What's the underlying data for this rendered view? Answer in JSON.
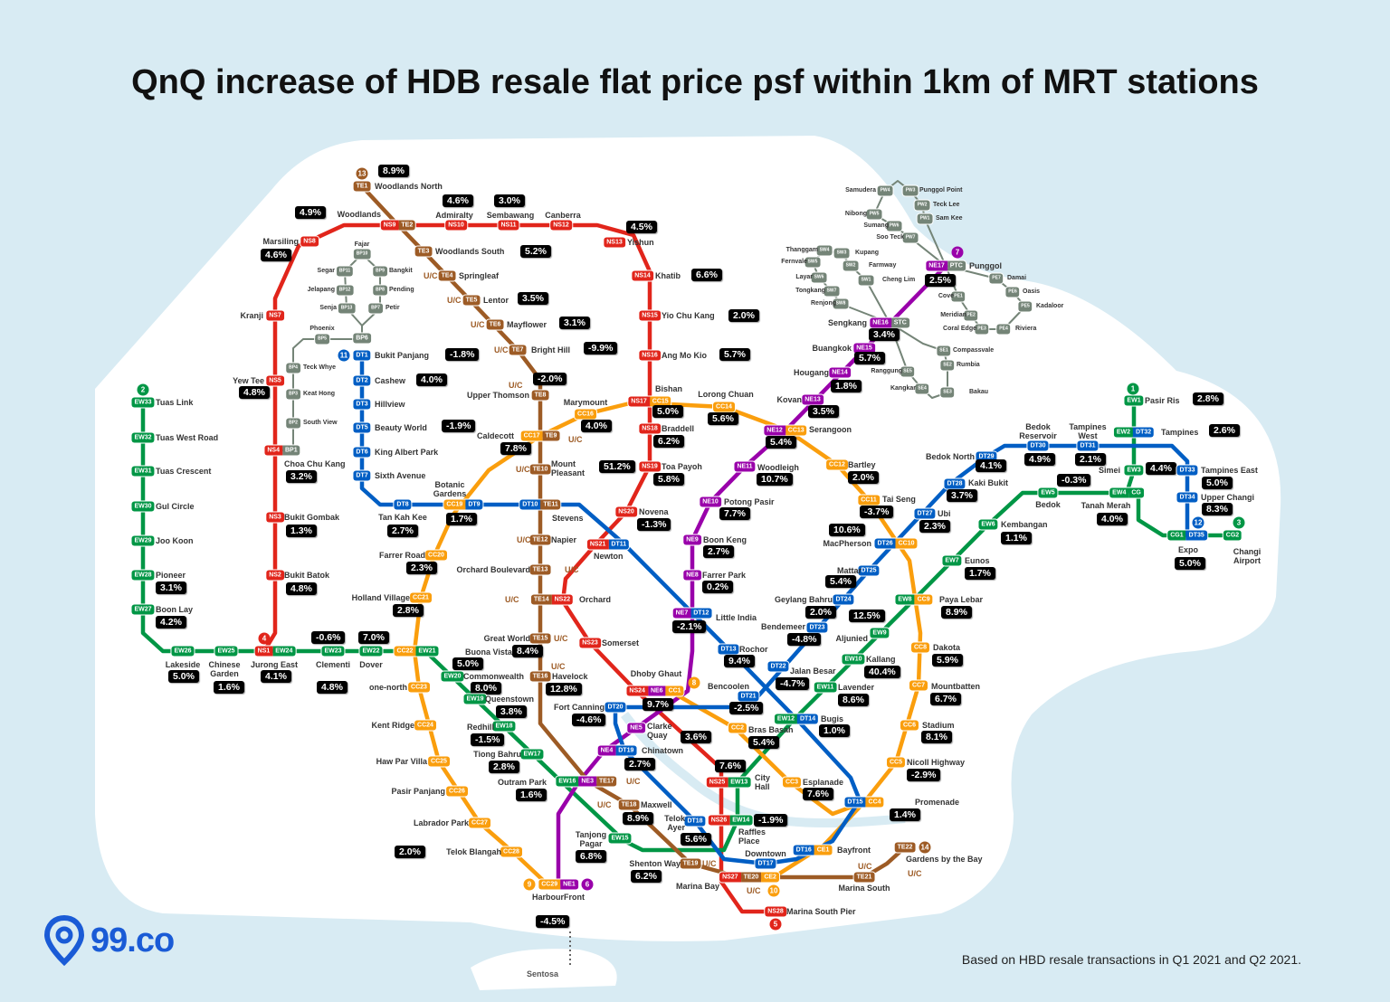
{
  "title": "QnQ increase of HDB resale flat price psf within 1km of MRT stations",
  "footer": "Based on HBD resale transactions in Q1 2021 and Q2 2021.",
  "logo": "99.co",
  "sentosa": "Sentosa",
  "uc_label": "U/C",
  "colors": {
    "NS": "#e1251b",
    "EW": "#009645",
    "NE": "#9900aa",
    "CC": "#fa9e0d",
    "DT": "#005ec4",
    "TE": "#9d5b25",
    "LRT": "#748477",
    "value_bg": "#000000",
    "sea": "#d8ebf3",
    "land": "#ffffff"
  },
  "line_numbers": [
    "1",
    "2",
    "3",
    "4",
    "5",
    "6",
    "7",
    "8",
    "9",
    "10",
    "11",
    "12",
    "13",
    "14"
  ],
  "stations": [
    {
      "name": "Jurong East",
      "codes": [
        "NS1",
        "EW24"
      ],
      "value": "4.1%"
    },
    {
      "name": "Bukit Batok",
      "codes": [
        "NS2"
      ],
      "value": "4.8%"
    },
    {
      "name": "Bukit Gombak",
      "codes": [
        "NS3"
      ],
      "value": "1.3%"
    },
    {
      "name": "Choa Chu Kang",
      "codes": [
        "NS4",
        "BP1"
      ],
      "value": "3.2%"
    },
    {
      "name": "Yew Tee",
      "codes": [
        "NS5"
      ],
      "value": "4.8%"
    },
    {
      "name": "Kranji",
      "codes": [
        "NS7"
      ],
      "value": null
    },
    {
      "name": "Marsiling",
      "codes": [
        "NS8"
      ],
      "value": "4.6%"
    },
    {
      "name": "Woodlands",
      "codes": [
        "NS9",
        "TE2"
      ],
      "value": "4.9%"
    },
    {
      "name": "Admiralty",
      "codes": [
        "NS10"
      ],
      "value": "4.6%"
    },
    {
      "name": "Sembawang",
      "codes": [
        "NS11"
      ],
      "value": "3.0%"
    },
    {
      "name": "Canberra",
      "codes": [
        "NS12"
      ],
      "value": null
    },
    {
      "name": "Yishun",
      "codes": [
        "NS13"
      ],
      "value": "4.5%"
    },
    {
      "name": "Khatib",
      "codes": [
        "NS14"
      ],
      "value": "6.6%"
    },
    {
      "name": "Yio Chu Kang",
      "codes": [
        "NS15"
      ],
      "value": "2.0%"
    },
    {
      "name": "Ang Mo Kio",
      "codes": [
        "NS16"
      ],
      "value": "5.7%"
    },
    {
      "name": "Bishan",
      "codes": [
        "NS17",
        "CC15"
      ],
      "value": "5.0%"
    },
    {
      "name": "Braddell",
      "codes": [
        "NS18"
      ],
      "value": "6.2%"
    },
    {
      "name": "Toa Payoh",
      "codes": [
        "NS19"
      ],
      "value": "5.8%"
    },
    {
      "name": "Novena",
      "codes": [
        "NS20"
      ],
      "value": "-1.3%"
    },
    {
      "name": "Newton",
      "codes": [
        "NS21",
        "DT11"
      ],
      "value": null
    },
    {
      "name": "Orchard",
      "codes": [
        "TE14",
        "NS22"
      ],
      "value": null
    },
    {
      "name": "Somerset",
      "codes": [
        "NS23"
      ],
      "value": null
    },
    {
      "name": "Dhoby Ghaut",
      "codes": [
        "NS24",
        "NE6",
        "CC1"
      ],
      "value": "9.7%"
    },
    {
      "name": "City Hall",
      "codes": [
        "NS25",
        "EW13"
      ],
      "value": "7.6%"
    },
    {
      "name": "Raffles Place",
      "codes": [
        "NS26",
        "EW14"
      ],
      "value": "-1.9%"
    },
    {
      "name": "Marina Bay",
      "codes": [
        "NS27",
        "TE20",
        "CE2"
      ],
      "value": null
    },
    {
      "name": "Marina South Pier",
      "codes": [
        "NS28"
      ],
      "value": null
    },
    {
      "name": "Tuas Link",
      "codes": [
        "EW33"
      ],
      "value": null
    },
    {
      "name": "Tuas West Road",
      "codes": [
        "EW32"
      ],
      "value": null
    },
    {
      "name": "Tuas Crescent",
      "codes": [
        "EW31"
      ],
      "value": null
    },
    {
      "name": "Gul Circle",
      "codes": [
        "EW30"
      ],
      "value": null
    },
    {
      "name": "Joo Koon",
      "codes": [
        "EW29"
      ],
      "value": null
    },
    {
      "name": "Pioneer",
      "codes": [
        "EW28"
      ],
      "value": "3.1%"
    },
    {
      "name": "Boon Lay",
      "codes": [
        "EW27"
      ],
      "value": "4.2%"
    },
    {
      "name": "Lakeside",
      "codes": [
        "EW26"
      ],
      "value": "5.0%"
    },
    {
      "name": "Chinese Garden",
      "codes": [
        "EW25"
      ],
      "value": "1.6%"
    },
    {
      "name": "Clementi",
      "codes": [
        "EW23"
      ],
      "value": "-0.6%"
    },
    {
      "name": "Dover",
      "codes": [
        "EW22"
      ],
      "value": "7.0%"
    },
    {
      "name": "Buona Vista",
      "codes": [
        "CC22",
        "EW21"
      ],
      "value": "5.0%"
    },
    {
      "name": "Commonwealth",
      "codes": [
        "EW20"
      ],
      "value": "8.0%"
    },
    {
      "name": "Queenstown",
      "codes": [
        "EW19"
      ],
      "value": "3.8%"
    },
    {
      "name": "Redhill",
      "codes": [
        "EW18"
      ],
      "value": "-1.5%"
    },
    {
      "name": "Tiong Bahru",
      "codes": [
        "EW17"
      ],
      "value": "2.8%"
    },
    {
      "name": "Outram Park",
      "codes": [
        "EW16",
        "NE3",
        "TE17"
      ],
      "value": "1.6%"
    },
    {
      "name": "Tanjong Pagar",
      "codes": [
        "EW15"
      ],
      "value": "6.8%"
    },
    {
      "name": "Bugis",
      "codes": [
        "EW12",
        "DT14"
      ],
      "value": "1.0%"
    },
    {
      "name": "Lavender",
      "codes": [
        "EW11"
      ],
      "value": "8.6%"
    },
    {
      "name": "Kallang",
      "codes": [
        "EW10"
      ],
      "value": "40.4%"
    },
    {
      "name": "Aljunied",
      "codes": [
        "EW9"
      ],
      "value": "12.5%"
    },
    {
      "name": "Paya Lebar",
      "codes": [
        "EW8",
        "CC9"
      ],
      "value": "8.9%"
    },
    {
      "name": "Eunos",
      "codes": [
        "EW7"
      ],
      "value": "1.7%"
    },
    {
      "name": "Kembangan",
      "codes": [
        "EW6"
      ],
      "value": "1.1%"
    },
    {
      "name": "Bedok",
      "codes": [
        "EW5"
      ],
      "value": "-0.3%"
    },
    {
      "name": "Tanah Merah",
      "codes": [
        "EW4",
        "CG"
      ],
      "value": "4.0%"
    },
    {
      "name": "Simei",
      "codes": [
        "EW3"
      ],
      "value": "4.4%"
    },
    {
      "name": "Tampines",
      "codes": [
        "EW2",
        "DT32"
      ],
      "value": "2.6%"
    },
    {
      "name": "Pasir Ris",
      "codes": [
        "EW1"
      ],
      "value": "2.8%"
    },
    {
      "name": "Expo",
      "codes": [
        "CG1",
        "DT35"
      ],
      "value": "5.0%"
    },
    {
      "name": "Changi Airport",
      "codes": [
        "CG2"
      ],
      "value": null
    },
    {
      "name": "HarbourFront",
      "codes": [
        "CC29",
        "NE1"
      ],
      "value": "-4.5%"
    },
    {
      "name": "Chinatown",
      "codes": [
        "NE4",
        "DT19"
      ],
      "value": "2.7%"
    },
    {
      "name": "Clarke Quay",
      "codes": [
        "NE5"
      ],
      "value": "3.6%"
    },
    {
      "name": "Little India",
      "codes": [
        "NE7",
        "DT12"
      ],
      "value": "-2.1%"
    },
    {
      "name": "Farrer Park",
      "codes": [
        "NE8"
      ],
      "value": "0.2%"
    },
    {
      "name": "Boon Keng",
      "codes": [
        "NE9"
      ],
      "value": "2.7%"
    },
    {
      "name": "Potong Pasir",
      "codes": [
        "NE10"
      ],
      "value": "7.7%"
    },
    {
      "name": "Woodleigh",
      "codes": [
        "NE11"
      ],
      "value": "10.7%"
    },
    {
      "name": "Serangoon",
      "codes": [
        "NE12",
        "CC13"
      ],
      "value": "5.4%"
    },
    {
      "name": "Kovan",
      "codes": [
        "NE13"
      ],
      "value": "3.5%"
    },
    {
      "name": "Hougang",
      "codes": [
        "NE14"
      ],
      "value": "1.8%"
    },
    {
      "name": "Buangkok",
      "codes": [
        "NE15"
      ],
      "value": "5.7%"
    },
    {
      "name": "Sengkang",
      "codes": [
        "NE16",
        "STC"
      ],
      "value": "3.4%"
    },
    {
      "name": "Punggol",
      "codes": [
        "NE17",
        "PTC"
      ],
      "value": "2.5%"
    },
    {
      "name": "Bras Basah",
      "codes": [
        "CC2"
      ],
      "value": "5.4%"
    },
    {
      "name": "Esplanade",
      "codes": [
        "CC3"
      ],
      "value": "7.6%"
    },
    {
      "name": "Promenade",
      "codes": [
        "DT15",
        "CC4"
      ],
      "value": "1.4%"
    },
    {
      "name": "Nicoll Highway",
      "codes": [
        "CC5"
      ],
      "value": "-2.9%"
    },
    {
      "name": "Stadium",
      "codes": [
        "CC6"
      ],
      "value": "8.1%"
    },
    {
      "name": "Mountbatten",
      "codes": [
        "CC7"
      ],
      "value": "6.7%"
    },
    {
      "name": "Dakota",
      "codes": [
        "CC8"
      ],
      "value": "5.9%"
    },
    {
      "name": "MacPherson",
      "codes": [
        "DT26",
        "CC10"
      ],
      "value": "10.6%"
    },
    {
      "name": "Tai Seng",
      "codes": [
        "CC11"
      ],
      "value": "-3.7%"
    },
    {
      "name": "Bartley",
      "codes": [
        "CC12"
      ],
      "value": "2.0%"
    },
    {
      "name": "Lorong Chuan",
      "codes": [
        "CC14"
      ],
      "value": "5.6%"
    },
    {
      "name": "Marymount",
      "codes": [
        "CC16"
      ],
      "value": "4.0%"
    },
    {
      "name": "Caldecott",
      "codes": [
        "CC17",
        "TE9"
      ],
      "value": "7.8%"
    },
    {
      "name": "Botanic Gardens",
      "codes": [
        "CC19",
        "DT9"
      ],
      "value": "1.7%"
    },
    {
      "name": "Farrer Road",
      "codes": [
        "CC20"
      ],
      "value": "2.3%"
    },
    {
      "name": "Holland Village",
      "codes": [
        "CC21"
      ],
      "value": "2.8%"
    },
    {
      "name": "one-north",
      "codes": [
        "CC23"
      ],
      "value": "4.8%"
    },
    {
      "name": "Kent Ridge",
      "codes": [
        "CC24"
      ],
      "value": null
    },
    {
      "name": "Haw Par Villa",
      "codes": [
        "CC25"
      ],
      "value": null
    },
    {
      "name": "Pasir Panjang",
      "codes": [
        "CC26"
      ],
      "value": null
    },
    {
      "name": "Labrador Park",
      "codes": [
        "CC27"
      ],
      "value": null
    },
    {
      "name": "Telok Blangah",
      "codes": [
        "CC28"
      ],
      "value": "2.0%"
    },
    {
      "name": "Bayfront",
      "codes": [
        "DT16",
        "CE1"
      ],
      "value": null
    },
    {
      "name": "Bukit Panjang",
      "codes": [
        "DT1"
      ],
      "value": "-1.8%"
    },
    {
      "name": "Cashew",
      "codes": [
        "DT2"
      ],
      "value": "4.0%"
    },
    {
      "name": "Hillview",
      "codes": [
        "DT3"
      ],
      "value": null
    },
    {
      "name": "Beauty World",
      "codes": [
        "DT5"
      ],
      "value": "-1.9%"
    },
    {
      "name": "King Albert Park",
      "codes": [
        "DT6"
      ],
      "value": null
    },
    {
      "name": "Sixth Avenue",
      "codes": [
        "DT7"
      ],
      "value": null
    },
    {
      "name": "Tan Kah Kee",
      "codes": [
        "DT8"
      ],
      "value": "2.7%"
    },
    {
      "name": "Stevens",
      "codes": [
        "DT10",
        "TE11"
      ],
      "value": null
    },
    {
      "name": "Rochor",
      "codes": [
        "DT13"
      ],
      "value": "9.4%"
    },
    {
      "name": "Jalan Besar",
      "codes": [
        "DT22"
      ],
      "value": "-4.7%"
    },
    {
      "name": "Bendemeer",
      "codes": [
        "DT23"
      ],
      "value": "-4.8%"
    },
    {
      "name": "Geylang Bahru",
      "codes": [
        "DT24"
      ],
      "value": "2.0%"
    },
    {
      "name": "Mattar",
      "codes": [
        "DT25"
      ],
      "value": "5.4%"
    },
    {
      "name": "Ubi",
      "codes": [
        "DT27"
      ],
      "value": "2.3%"
    },
    {
      "name": "Kaki Bukit",
      "codes": [
        "DT28"
      ],
      "value": "3.7%"
    },
    {
      "name": "Bedok North",
      "codes": [
        "DT29"
      ],
      "value": "4.1%"
    },
    {
      "name": "Bedok Reservoir",
      "codes": [
        "DT30"
      ],
      "value": "4.9%"
    },
    {
      "name": "Tampines West",
      "codes": [
        "DT31"
      ],
      "value": "2.1%"
    },
    {
      "name": "Tampines East",
      "codes": [
        "DT33"
      ],
      "value": "5.0%"
    },
    {
      "name": "Upper Changi",
      "codes": [
        "DT34"
      ],
      "value": "8.3%"
    },
    {
      "name": "Fort Canning",
      "codes": [
        "DT20"
      ],
      "value": "-4.6%"
    },
    {
      "name": "Bencoolen",
      "codes": [
        "DT21"
      ],
      "value": "-2.5%"
    },
    {
      "name": "Telok Ayer",
      "codes": [
        "DT18"
      ],
      "value": "5.6%"
    },
    {
      "name": "Downtown",
      "codes": [
        "DT17"
      ],
      "value": null
    },
    {
      "name": "Great World",
      "codes": [
        "TE15"
      ],
      "value": "8.4%"
    },
    {
      "name": "Havelock",
      "codes": [
        "TE16"
      ],
      "value": "12.8%"
    },
    {
      "name": "Maxwell",
      "codes": [
        "TE18"
      ],
      "value": "8.9%"
    },
    {
      "name": "Shenton Way",
      "codes": [
        "TE19"
      ],
      "value": "6.2%"
    },
    {
      "name": "Marina South",
      "codes": [
        "TE21"
      ],
      "value": null
    },
    {
      "name": "Gardens by the Bay",
      "codes": [
        "TE22"
      ],
      "value": null
    },
    {
      "name": "Woodlands North",
      "codes": [
        "TE1"
      ],
      "value": "8.9%"
    },
    {
      "name": "Woodlands South",
      "codes": [
        "TE3"
      ],
      "value": "5.2%"
    },
    {
      "name": "Springleaf",
      "codes": [
        "TE4"
      ],
      "value": null
    },
    {
      "name": "Lentor",
      "codes": [
        "TE5"
      ],
      "value": "3.5%"
    },
    {
      "name": "Mayflower",
      "codes": [
        "TE6"
      ],
      "value": "3.1%"
    },
    {
      "name": "Bright Hill",
      "codes": [
        "TE7"
      ],
      "value": "-9.9%"
    },
    {
      "name": "Upper Thomson",
      "codes": [
        "TE8"
      ],
      "value": "-2.0%"
    },
    {
      "name": "Mount Pleasant",
      "codes": [
        "TE10"
      ],
      "value": "51.2%"
    },
    {
      "name": "Napier",
      "codes": [
        "TE12"
      ],
      "value": null
    },
    {
      "name": "Orchard Boulevard",
      "codes": [
        "TE13"
      ],
      "value": null
    }
  ],
  "lrt_stations": [
    {
      "name": "",
      "code": "BP6"
    },
    {
      "name": "Phoenix",
      "code": "BP5"
    },
    {
      "name": "Teck Whye",
      "code": "BP4"
    },
    {
      "name": "Keat Hong",
      "code": "BP3"
    },
    {
      "name": "South View",
      "code": "BP2"
    },
    {
      "name": "Senja",
      "code": "BP13"
    },
    {
      "name": "Jelapang",
      "code": "BP12"
    },
    {
      "name": "Segar",
      "code": "BP11"
    },
    {
      "name": "Fajar",
      "code": "BP10"
    },
    {
      "name": "Bangkit",
      "code": "BP9"
    },
    {
      "name": "Pending",
      "code": "BP8"
    },
    {
      "name": "Petir",
      "code": "BP7"
    },
    {
      "name": "Compassvale",
      "code": "SE1"
    },
    {
      "name": "Rumbia",
      "code": "SE2"
    },
    {
      "name": "Bakau",
      "code": "SE3"
    },
    {
      "name": "Kangkar",
      "code": "SE4"
    },
    {
      "name": "Ranggung",
      "code": "SE5"
    },
    {
      "name": "Cheng Lim",
      "code": "SW1"
    },
    {
      "name": "Farmway",
      "code": "SW2"
    },
    {
      "name": "Kupang",
      "code": "SW3"
    },
    {
      "name": "Thanggam",
      "code": "SW4"
    },
    {
      "name": "Fernvale",
      "code": "SW5"
    },
    {
      "name": "Layar",
      "code": "SW6"
    },
    {
      "name": "Tongkang",
      "code": "SW7"
    },
    {
      "name": "Renjong",
      "code": "SW8"
    },
    {
      "name": "Cove",
      "code": "PE1"
    },
    {
      "name": "Meridian",
      "code": "PE2"
    },
    {
      "name": "Coral Edge",
      "code": "PE3"
    },
    {
      "name": "Riviera",
      "code": "PE4"
    },
    {
      "name": "Kadaloor",
      "code": "PE5"
    },
    {
      "name": "Oasis",
      "code": "PE6"
    },
    {
      "name": "Damai",
      "code": "PE7"
    },
    {
      "name": "Sam Kee",
      "code": "PW1"
    },
    {
      "name": "Teck Lee",
      "code": "PW2"
    },
    {
      "name": "Punggol Point",
      "code": "PW3"
    },
    {
      "name": "Samudera",
      "code": "PW4"
    },
    {
      "name": "Nibong",
      "code": "PW5"
    },
    {
      "name": "Sumang",
      "code": "PW6"
    },
    {
      "name": "Soo Teck",
      "code": "PW7"
    }
  ]
}
